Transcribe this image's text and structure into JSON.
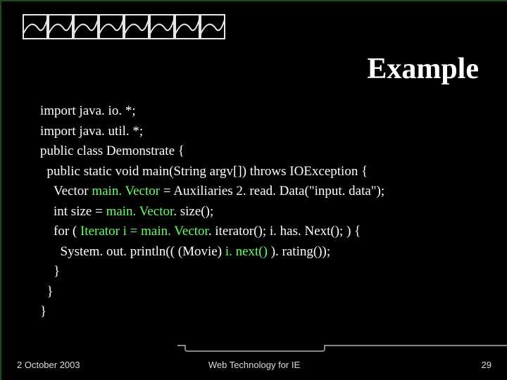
{
  "slide": {
    "title": "Example",
    "background_color": "#000000",
    "text_color": "#ffffff",
    "highlight_color": "#66ff66",
    "title_fontsize": 42,
    "code_fontsize": 19,
    "code_lines": [
      {
        "indent": 0,
        "segments": [
          {
            "text": "import java. io. *;"
          }
        ]
      },
      {
        "indent": 0,
        "segments": [
          {
            "text": "import java. util. *;"
          }
        ]
      },
      {
        "indent": 0,
        "segments": [
          {
            "text": "public class Demonstrate {"
          }
        ]
      },
      {
        "indent": 1,
        "segments": [
          {
            "text": "public static void main(String argv[]) throws IOException {"
          }
        ]
      },
      {
        "indent": 2,
        "segments": [
          {
            "text": "Vector "
          },
          {
            "text": "main. Vector",
            "highlight": true
          },
          {
            "text": " = Auxiliaries 2. read. Data(\"input. data\");"
          }
        ]
      },
      {
        "indent": 2,
        "segments": [
          {
            "text": "int size = "
          },
          {
            "text": "main. Vector",
            "highlight": true
          },
          {
            "text": ". size();"
          }
        ]
      },
      {
        "indent": 2,
        "segments": [
          {
            "text": "for ( "
          },
          {
            "text": "Iterator i = main. Vector",
            "highlight": true
          },
          {
            "text": ". iterator(); i. has. Next(); ) {"
          }
        ]
      },
      {
        "indent": 3,
        "segments": [
          {
            "text": "System. out. println(( (Movie) "
          },
          {
            "text": "i. next()",
            "highlight": true
          },
          {
            "text": " ). rating());"
          }
        ]
      },
      {
        "indent": 2,
        "segments": [
          {
            "text": "}"
          }
        ]
      },
      {
        "indent": 1,
        "segments": [
          {
            "text": "}"
          }
        ]
      },
      {
        "indent": 0,
        "segments": [
          {
            "text": "}"
          }
        ]
      }
    ],
    "decor": {
      "count": 8,
      "stroke": "#e6e6e6",
      "box_size": 36
    }
  },
  "footer": {
    "date": "2 October 2003",
    "center": "Web Technology for IE",
    "page": "29",
    "rule_color": "#8a8a8a",
    "fontsize": 13
  }
}
